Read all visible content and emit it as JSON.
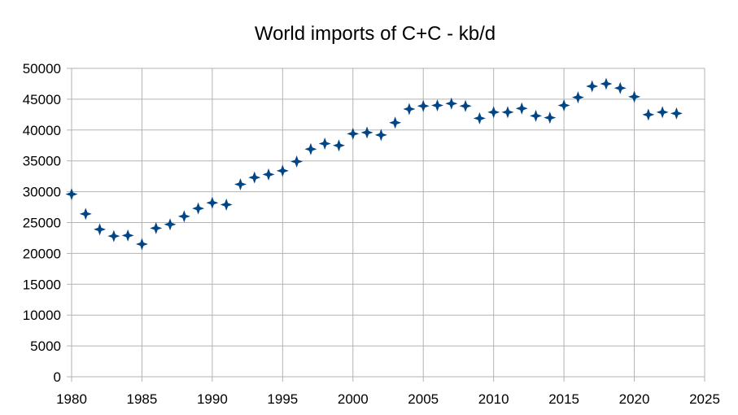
{
  "chart_data": {
    "type": "scatter",
    "title": "World imports of C+C - kb/d",
    "xlabel": "",
    "ylabel": "",
    "xlim": [
      1980,
      2025
    ],
    "ylim": [
      0,
      50000
    ],
    "xticks": [
      1980,
      1985,
      1990,
      1995,
      2000,
      2005,
      2010,
      2015,
      2020,
      2025
    ],
    "yticks": [
      0,
      5000,
      10000,
      15000,
      20000,
      25000,
      30000,
      35000,
      40000,
      45000,
      50000
    ],
    "grid": true,
    "legend": "none",
    "marker": "four-point-star",
    "marker_color": "#004586",
    "series": [
      {
        "x": [
          1980,
          1981,
          1982,
          1983,
          1984,
          1985,
          1986,
          1987,
          1988,
          1989,
          1990,
          1991,
          1992,
          1993,
          1994,
          1995,
          1996,
          1997,
          1998,
          1999,
          2000,
          2001,
          2002,
          2003,
          2004,
          2005,
          2006,
          2007,
          2008,
          2009,
          2010,
          2011,
          2012,
          2013,
          2014,
          2015,
          2016,
          2017,
          2018,
          2019,
          2020,
          2021,
          2022,
          2023
        ],
        "y": [
          29600,
          26400,
          23900,
          22800,
          22900,
          21500,
          24100,
          24700,
          26000,
          27300,
          28200,
          27900,
          31200,
          32300,
          32800,
          33400,
          34900,
          36900,
          37800,
          37500,
          39400,
          39600,
          39200,
          41200,
          43400,
          43900,
          44000,
          44300,
          43900,
          41900,
          42900,
          42900,
          43500,
          42300,
          42000,
          44000,
          45300,
          47100,
          47500,
          46800,
          45400,
          42500,
          42900,
          42700
        ]
      }
    ]
  }
}
